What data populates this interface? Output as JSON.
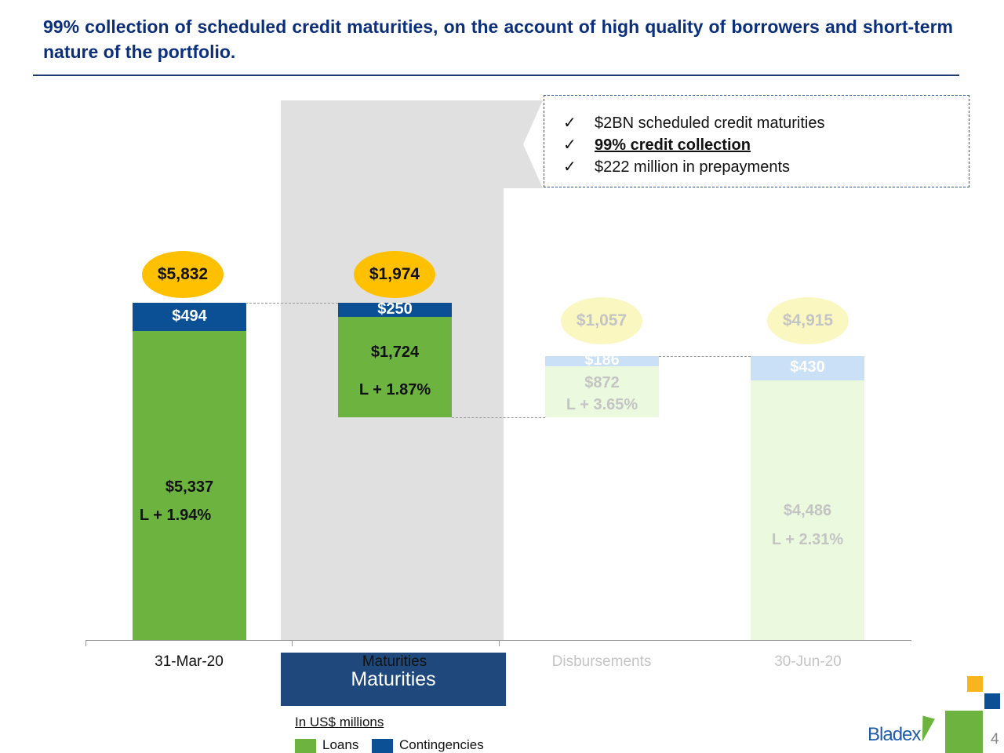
{
  "header": {
    "title": "99% collection of scheduled credit maturities, on the account of high quality of borrowers and short-term nature of the portfolio."
  },
  "callout": {
    "items": [
      {
        "icon": "checkmark-icon",
        "text": "$2BN scheduled credit maturities",
        "emphasis": false
      },
      {
        "icon": "checkmark-icon",
        "text": "99% credit collection",
        "emphasis": true
      },
      {
        "icon": "checkmark-icon",
        "text": "$222 million in prepayments",
        "emphasis": false
      }
    ],
    "check": "✓"
  },
  "maturities_label": "Maturities",
  "units_note": "In US$ millions",
  "legend": [
    {
      "label": "Loans",
      "color": "#6db33f"
    },
    {
      "label": "Contingencies",
      "color": "#0b4f95"
    }
  ],
  "footer": {
    "logo": "Bladex",
    "page": "4"
  },
  "chart_data": {
    "type": "bar",
    "subtype": "waterfall",
    "ylabel": "",
    "xlabel": "",
    "units": "US$ millions",
    "categories": [
      "31-Mar-20",
      "Maturities",
      "Disbursements",
      "30-Jun-20"
    ],
    "series": [
      {
        "name": "Loans",
        "values": [
          5337,
          1724,
          872,
          4486
        ],
        "color": "#6db33f",
        "faded_color": "#ebfadf"
      },
      {
        "name": "Contingencies",
        "values": [
          494,
          250,
          186,
          430
        ],
        "color": "#0b4f95",
        "faded_color": "#c9e0f6"
      }
    ],
    "totals": [
      "$5,832",
      "$1,974",
      "$1,057",
      "$4,915"
    ],
    "loan_labels": [
      "$5,337",
      "$1,724",
      "$872",
      "$4,486"
    ],
    "contingency_labels": [
      "$494",
      "$250",
      "$186",
      "$430"
    ],
    "rate_labels": [
      "L + 1.94%",
      "L + 1.87%",
      "L + 3.65%",
      "L + 2.31%"
    ],
    "bases": [
      0,
      3858,
      3858,
      0
    ],
    "faded": [
      false,
      false,
      true,
      true
    ],
    "total_color": "#ffc000",
    "faded_total_color": "#fbf7c0"
  }
}
